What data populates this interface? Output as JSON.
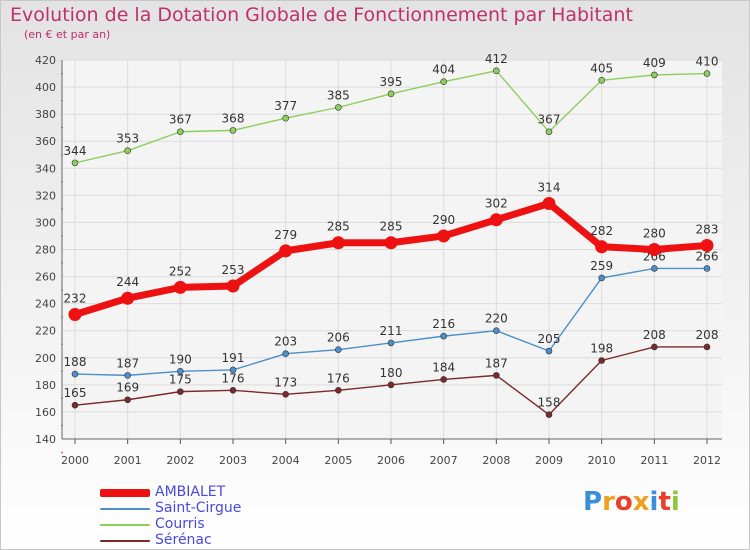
{
  "header": {
    "title": "Evolution de la Dotation Globale de Fonctionnement par Habitant",
    "subtitle": "(en € et par an)"
  },
  "logo": {
    "text": "Proxiti",
    "letters": [
      {
        "ch": "P",
        "color": "#3a8fd8"
      },
      {
        "ch": "r",
        "color": "#f0a020"
      },
      {
        "ch": "o",
        "color": "#e8402a"
      },
      {
        "ch": "x",
        "color": "#f0a020"
      },
      {
        "ch": "i",
        "color": "#3a8fd8"
      },
      {
        "ch": "t",
        "color": "#e8402a"
      },
      {
        "ch": "i",
        "color": "#8cc83c"
      }
    ]
  },
  "chart_data": {
    "type": "line",
    "title": "Evolution de la Dotation Globale de Fonctionnement par Habitant",
    "subtitle": "(en € et par an)",
    "x": [
      "2000",
      "2001",
      "2002",
      "2003",
      "2004",
      "2005",
      "2006",
      "2007",
      "2008",
      "2009",
      "2010",
      "2011",
      "2012"
    ],
    "ylim": [
      140,
      420
    ],
    "yticks": [
      140,
      160,
      180,
      200,
      220,
      240,
      260,
      280,
      300,
      320,
      340,
      360,
      380,
      400,
      420
    ],
    "grid": true,
    "legend_position": "bottom-left",
    "series": [
      {
        "name": "AMBIALET",
        "color": "#ee1111",
        "emphasis": true,
        "values": [
          232,
          244,
          252,
          253,
          279,
          285,
          285,
          290,
          302,
          314,
          282,
          280,
          283
        ]
      },
      {
        "name": "Saint-Cirgue",
        "color": "#4d8fcb",
        "emphasis": false,
        "values": [
          188,
          187,
          190,
          191,
          203,
          206,
          211,
          216,
          220,
          205,
          259,
          266,
          266
        ]
      },
      {
        "name": "Courris",
        "color": "#8ccf5a",
        "emphasis": false,
        "values": [
          344,
          353,
          367,
          368,
          377,
          385,
          395,
          404,
          412,
          367,
          405,
          409,
          410
        ]
      },
      {
        "name": "Sérénac",
        "color": "#7a2a2a",
        "emphasis": false,
        "values": [
          165,
          169,
          175,
          176,
          173,
          176,
          180,
          184,
          187,
          158,
          198,
          208,
          208
        ]
      }
    ]
  }
}
